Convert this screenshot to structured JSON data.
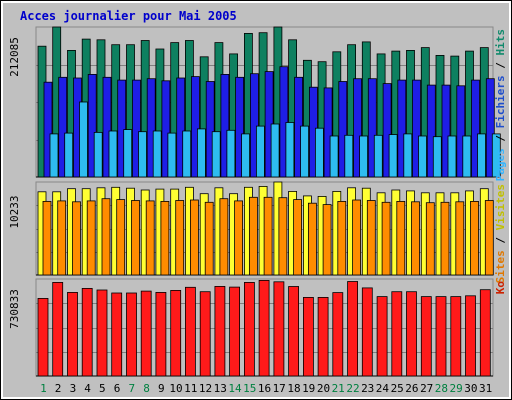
{
  "chart_data": {
    "type": "bar",
    "title": "Acces journalier pour Mai 2005",
    "categories": [
      "1",
      "2",
      "3",
      "4",
      "5",
      "6",
      "7",
      "8",
      "9",
      "10",
      "11",
      "12",
      "13",
      "14",
      "15",
      "16",
      "17",
      "18",
      "19",
      "20",
      "21",
      "22",
      "23",
      "24",
      "25",
      "26",
      "27",
      "28",
      "29",
      "30",
      "31"
    ],
    "weekend_days": [
      "1",
      "7",
      "8",
      "14",
      "15",
      "21",
      "22",
      "28",
      "29"
    ],
    "weekend_color": "#008040",
    "weekday_color": "#000000",
    "panels": [
      {
        "ymax": 212085,
        "ymax_label": "212085",
        "right_labels": [
          {
            "text": "Pages",
            "color": "#33b5ff"
          },
          {
            "text": " / ",
            "color": "#000000"
          },
          {
            "text": "Fichiers",
            "color": "#1e4ecc"
          },
          {
            "text": " / ",
            "color": "#000000"
          },
          {
            "text": "Hits",
            "color": "#118a6c"
          }
        ],
        "series": [
          {
            "name": "Hits",
            "color": "#0e8060",
            "values": [
              185000,
              212085,
              179000,
              195000,
              194000,
              187000,
              187000,
              193000,
              181000,
              190000,
              193000,
              170000,
              190000,
              174000,
              203000,
              204000,
              212085,
              194000,
              165000,
              163000,
              177000,
              187000,
              191000,
              174000,
              178000,
              179000,
              183000,
              172000,
              171000,
              178000,
              183000
            ]
          },
          {
            "name": "Fichiers",
            "color": "#1e1ee6",
            "values": [
              134000,
              141000,
              140000,
              145000,
              141000,
              137000,
              137000,
              139000,
              136000,
              140000,
              142000,
              135000,
              145000,
              141000,
              146000,
              149000,
              156000,
              141000,
              127000,
              126000,
              135000,
              139000,
              139000,
              132000,
              137000,
              137000,
              130000,
              130000,
              129000,
              137000,
              139000
            ]
          },
          {
            "name": "Pages",
            "color": "#2ebcf0",
            "values": [
              61000,
              62000,
              106000,
              63000,
              65000,
              67000,
              64000,
              65000,
              62000,
              65000,
              68000,
              64000,
              66000,
              61000,
              72000,
              75000,
              77000,
              72000,
              69000,
              58000,
              59000,
              58000,
              59000,
              60000,
              61000,
              58000,
              57000,
              58000,
              58000,
              61000,
              61000
            ]
          }
        ]
      },
      {
        "ymax": 10233,
        "ymax_label": "10233",
        "right_labels": [
          {
            "text": "Sites",
            "color": "#e07800"
          },
          {
            "text": " / ",
            "color": "#000000"
          },
          {
            "text": "Visites",
            "color": "#c0c000"
          }
        ],
        "series": [
          {
            "name": "Visites",
            "color": "#ffff33",
            "values": [
              9150,
              9150,
              9500,
              9500,
              9600,
              9650,
              9550,
              9350,
              9450,
              9450,
              9650,
              8950,
              9600,
              8950,
              9650,
              9750,
              10233,
              9200,
              8700,
              8650,
              9200,
              9600,
              9550,
              9050,
              9350,
              9250,
              9050,
              9050,
              9050,
              9250,
              9500
            ]
          },
          {
            "name": "Sites",
            "color": "#ff8c00",
            "values": [
              8100,
              8150,
              8050,
              8150,
              8400,
              8300,
              8200,
              8150,
              8100,
              8200,
              8250,
              8000,
              8400,
              8150,
              8550,
              8550,
              8500,
              8300,
              7900,
              7750,
              8100,
              8250,
              8200,
              8000,
              8100,
              8050,
              7950,
              8000,
              8050,
              8100,
              8200
            ]
          }
        ]
      },
      {
        "ymax": 730833,
        "ymax_label": "730833",
        "right_labels": [
          {
            "text": "Ko",
            "color": "#cc2200"
          }
        ],
        "series": [
          {
            "name": "Ko",
            "color": "#ff1a1a",
            "values": [
              585000,
              705000,
              630000,
              660000,
              648000,
              625000,
              625000,
              640000,
              630000,
              645000,
              668000,
              635000,
              675000,
              670000,
              705000,
              720000,
              710000,
              674000,
              592000,
              592000,
              628000,
              712000,
              664000,
              598000,
              635000,
              635000,
              598000,
              598000,
              598000,
              604000,
              650000
            ]
          }
        ]
      }
    ]
  }
}
